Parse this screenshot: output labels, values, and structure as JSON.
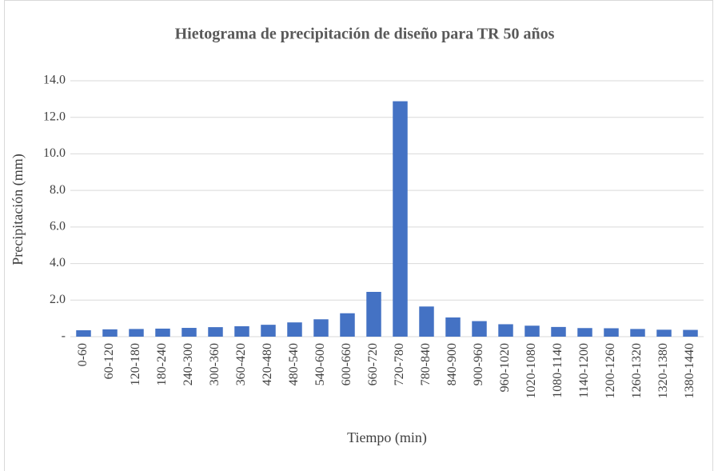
{
  "chart_data": {
    "type": "bar",
    "title": "Hietograma de precipitación de diseño para TR 50 años",
    "x_label": "Tiempo (min)",
    "y_label": "Precipitación (mm)",
    "categories": [
      "0-60",
      "60-120",
      "120-180",
      "180-240",
      "240-300",
      "300-360",
      "360-420",
      "420-480",
      "480-540",
      "540-600",
      "600-660",
      "660-720",
      "720-780",
      "780-840",
      "840-900",
      "900-960",
      "960-1020",
      "1020-1080",
      "1080-1140",
      "1140-1200",
      "1200-1260",
      "1260-1320",
      "1320-1380",
      "1380-1440"
    ],
    "values": [
      0.35,
      0.4,
      0.42,
      0.44,
      0.48,
      0.52,
      0.57,
      0.65,
      0.78,
      0.95,
      1.28,
      2.45,
      12.88,
      1.65,
      1.05,
      0.85,
      0.68,
      0.6,
      0.53,
      0.47,
      0.46,
      0.42,
      0.38,
      0.37
    ],
    "color": "#4472c4",
    "ylim": [
      0,
      14
    ],
    "yticks": [
      {
        "value": 0,
        "label": "-"
      },
      {
        "value": 2,
        "label": "2.0"
      },
      {
        "value": 4,
        "label": "4.0"
      },
      {
        "value": 6,
        "label": "6.0"
      },
      {
        "value": 8,
        "label": "8.0"
      },
      {
        "value": 10,
        "label": "10.0"
      },
      {
        "value": 12,
        "label": "12.0"
      },
      {
        "value": 14,
        "label": "14.0"
      }
    ],
    "grid": true
  }
}
